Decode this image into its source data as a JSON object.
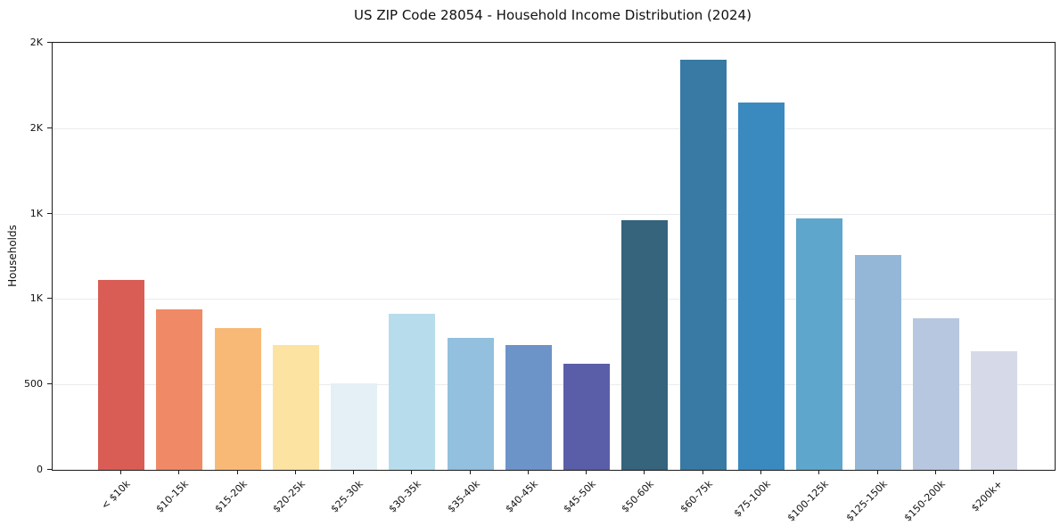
{
  "title": "US ZIP Code 28054 - Household Income Distribution (2024)",
  "colors": {
    "background": "#ffffff",
    "plot_background": "#ffffff",
    "grid": "#e9ebee",
    "spine": "#1c1c1c",
    "text": "#111111"
  },
  "chart_data": {
    "type": "bar",
    "title": "US ZIP Code 28054 - Household Income Distribution (2024)",
    "xlabel": "",
    "ylabel": "Households",
    "ylim": [
      0,
      2500
    ],
    "grid": "horizontal",
    "legend": "none",
    "categories": [
      "< $10k",
      "$10-15k",
      "$15-20k",
      "$20-25k",
      "$25-30k",
      "$30-35k",
      "$35-40k",
      "$40-45k",
      "$45-50k",
      "$50-60k",
      "$60-75k",
      "$75-100k",
      "$100-125k",
      "$125-150k",
      "$150-200k",
      "$200k+"
    ],
    "values": [
      1110,
      940,
      830,
      730,
      505,
      915,
      770,
      730,
      620,
      1460,
      2400,
      2150,
      1470,
      1260,
      885,
      695
    ],
    "bar_colors": [
      "#d95d55",
      "#f08a66",
      "#f9b976",
      "#fce3a2",
      "#e4f0f6",
      "#b7dcec",
      "#92c0de",
      "#6d94c9",
      "#5a5ea9",
      "#35647c",
      "#387aa3",
      "#3a8ac0",
      "#5ea6cb",
      "#94b7d8",
      "#b6c7df",
      "#d6d9e7"
    ],
    "yticks": [
      {
        "value": 0,
        "label": "0"
      },
      {
        "value": 500,
        "label": "500"
      },
      {
        "value": 1000,
        "label": "1K"
      },
      {
        "value": 1500,
        "label": "1K"
      },
      {
        "value": 2000,
        "label": "2K"
      },
      {
        "value": 2500,
        "label": "2K"
      }
    ]
  }
}
